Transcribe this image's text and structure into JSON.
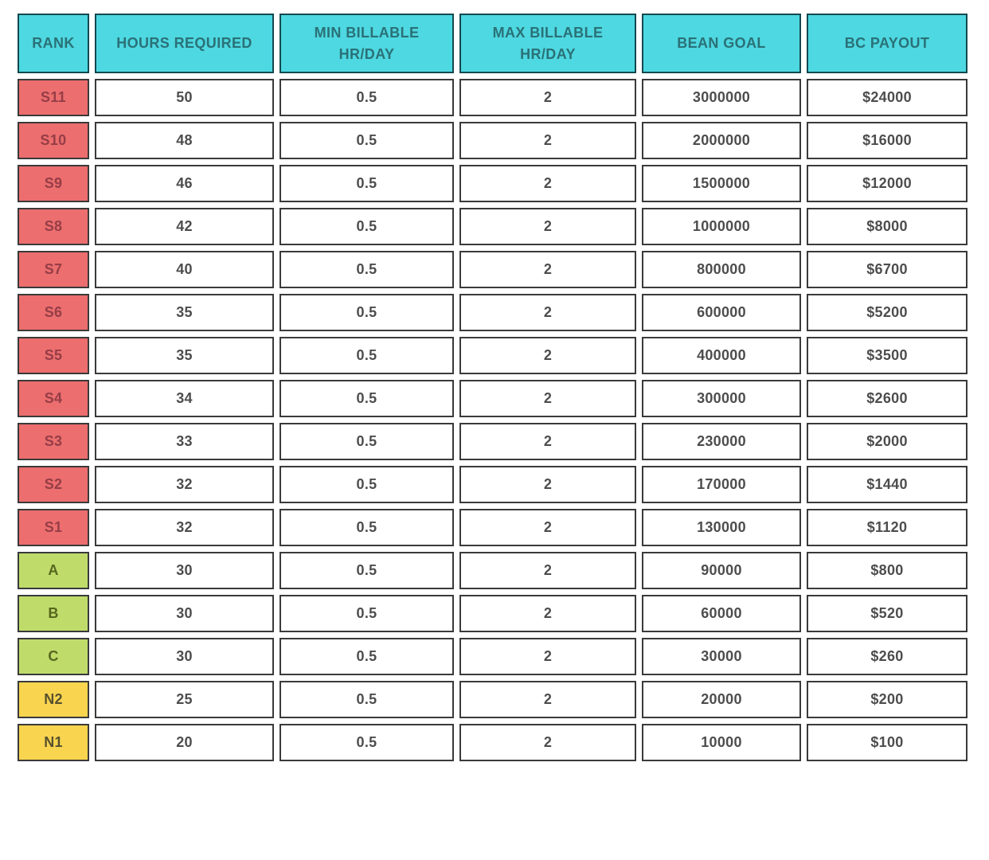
{
  "colors": {
    "header_bg": "#4ed8e1",
    "header_text": "#2a7177",
    "header_border": "#12494e",
    "cell_border": "#3a3a3a",
    "cell_bg": "#ffffff",
    "cell_text": "#4d4d4d",
    "tier_s_bg": "#ec6e6e",
    "tier_s_text": "#963d47",
    "tier_abc_bg": "#bfdc6b",
    "tier_abc_text": "#57661e",
    "tier_n_bg": "#f9d44f",
    "tier_n_text": "#57512d"
  },
  "table": {
    "headers": [
      "RANK",
      "HOURS REQUIRED",
      "MIN BILLABLE\nHR/DAY",
      "MAX BILLABLE\nHR/DAY",
      "BEAN GOAL",
      "BC PAYOUT"
    ],
    "rows": [
      {
        "rank": "S11",
        "tier": "s",
        "hours": "50",
        "min_billable": "0.5",
        "max_billable": "2",
        "bean_goal": "3000000",
        "bc_payout": "$24000"
      },
      {
        "rank": "S10",
        "tier": "s",
        "hours": "48",
        "min_billable": "0.5",
        "max_billable": "2",
        "bean_goal": "2000000",
        "bc_payout": "$16000"
      },
      {
        "rank": "S9",
        "tier": "s",
        "hours": "46",
        "min_billable": "0.5",
        "max_billable": "2",
        "bean_goal": "1500000",
        "bc_payout": "$12000"
      },
      {
        "rank": "S8",
        "tier": "s",
        "hours": "42",
        "min_billable": "0.5",
        "max_billable": "2",
        "bean_goal": "1000000",
        "bc_payout": "$8000"
      },
      {
        "rank": "S7",
        "tier": "s",
        "hours": "40",
        "min_billable": "0.5",
        "max_billable": "2",
        "bean_goal": "800000",
        "bc_payout": "$6700"
      },
      {
        "rank": "S6",
        "tier": "s",
        "hours": "35",
        "min_billable": "0.5",
        "max_billable": "2",
        "bean_goal": "600000",
        "bc_payout": "$5200"
      },
      {
        "rank": "S5",
        "tier": "s",
        "hours": "35",
        "min_billable": "0.5",
        "max_billable": "2",
        "bean_goal": "400000",
        "bc_payout": "$3500"
      },
      {
        "rank": "S4",
        "tier": "s",
        "hours": "34",
        "min_billable": "0.5",
        "max_billable": "2",
        "bean_goal": "300000",
        "bc_payout": "$2600"
      },
      {
        "rank": "S3",
        "tier": "s",
        "hours": "33",
        "min_billable": "0.5",
        "max_billable": "2",
        "bean_goal": "230000",
        "bc_payout": "$2000"
      },
      {
        "rank": "S2",
        "tier": "s",
        "hours": "32",
        "min_billable": "0.5",
        "max_billable": "2",
        "bean_goal": "170000",
        "bc_payout": "$1440"
      },
      {
        "rank": "S1",
        "tier": "s",
        "hours": "32",
        "min_billable": "0.5",
        "max_billable": "2",
        "bean_goal": "130000",
        "bc_payout": "$1120"
      },
      {
        "rank": "A",
        "tier": "abc",
        "hours": "30",
        "min_billable": "0.5",
        "max_billable": "2",
        "bean_goal": "90000",
        "bc_payout": "$800"
      },
      {
        "rank": "B",
        "tier": "abc",
        "hours": "30",
        "min_billable": "0.5",
        "max_billable": "2",
        "bean_goal": "60000",
        "bc_payout": "$520"
      },
      {
        "rank": "C",
        "tier": "abc",
        "hours": "30",
        "min_billable": "0.5",
        "max_billable": "2",
        "bean_goal": "30000",
        "bc_payout": "$260"
      },
      {
        "rank": "N2",
        "tier": "n",
        "hours": "25",
        "min_billable": "0.5",
        "max_billable": "2",
        "bean_goal": "20000",
        "bc_payout": "$200"
      },
      {
        "rank": "N1",
        "tier": "n",
        "hours": "20",
        "min_billable": "0.5",
        "max_billable": "2",
        "bean_goal": "10000",
        "bc_payout": "$100"
      }
    ]
  },
  "chart_data": {
    "type": "table",
    "columns": [
      "RANK",
      "HOURS REQUIRED",
      "MIN BILLABLE HR/DAY",
      "MAX BILLABLE HR/DAY",
      "BEAN GOAL",
      "BC PAYOUT"
    ],
    "rows": [
      [
        "S11",
        50,
        0.5,
        2,
        3000000,
        "$24000"
      ],
      [
        "S10",
        48,
        0.5,
        2,
        2000000,
        "$16000"
      ],
      [
        "S9",
        46,
        0.5,
        2,
        1500000,
        "$12000"
      ],
      [
        "S8",
        42,
        0.5,
        2,
        1000000,
        "$8000"
      ],
      [
        "S7",
        40,
        0.5,
        2,
        800000,
        "$6700"
      ],
      [
        "S6",
        35,
        0.5,
        2,
        600000,
        "$5200"
      ],
      [
        "S5",
        35,
        0.5,
        2,
        400000,
        "$3500"
      ],
      [
        "S4",
        34,
        0.5,
        2,
        300000,
        "$2600"
      ],
      [
        "S3",
        33,
        0.5,
        2,
        230000,
        "$2000"
      ],
      [
        "S2",
        32,
        0.5,
        2,
        170000,
        "$1440"
      ],
      [
        "S1",
        32,
        0.5,
        2,
        130000,
        "$1120"
      ],
      [
        "A",
        30,
        0.5,
        2,
        90000,
        "$800"
      ],
      [
        "B",
        30,
        0.5,
        2,
        60000,
        "$520"
      ],
      [
        "C",
        30,
        0.5,
        2,
        30000,
        "$260"
      ],
      [
        "N2",
        25,
        0.5,
        2,
        20000,
        "$200"
      ],
      [
        "N1",
        20,
        0.5,
        2,
        10000,
        "$100"
      ]
    ],
    "title": "",
    "legend": {
      "tier_s_color": "#ec6e6e",
      "tier_abc_color": "#bfdc6b",
      "tier_n_color": "#f9d44f",
      "header_color": "#4ed8e1"
    }
  }
}
